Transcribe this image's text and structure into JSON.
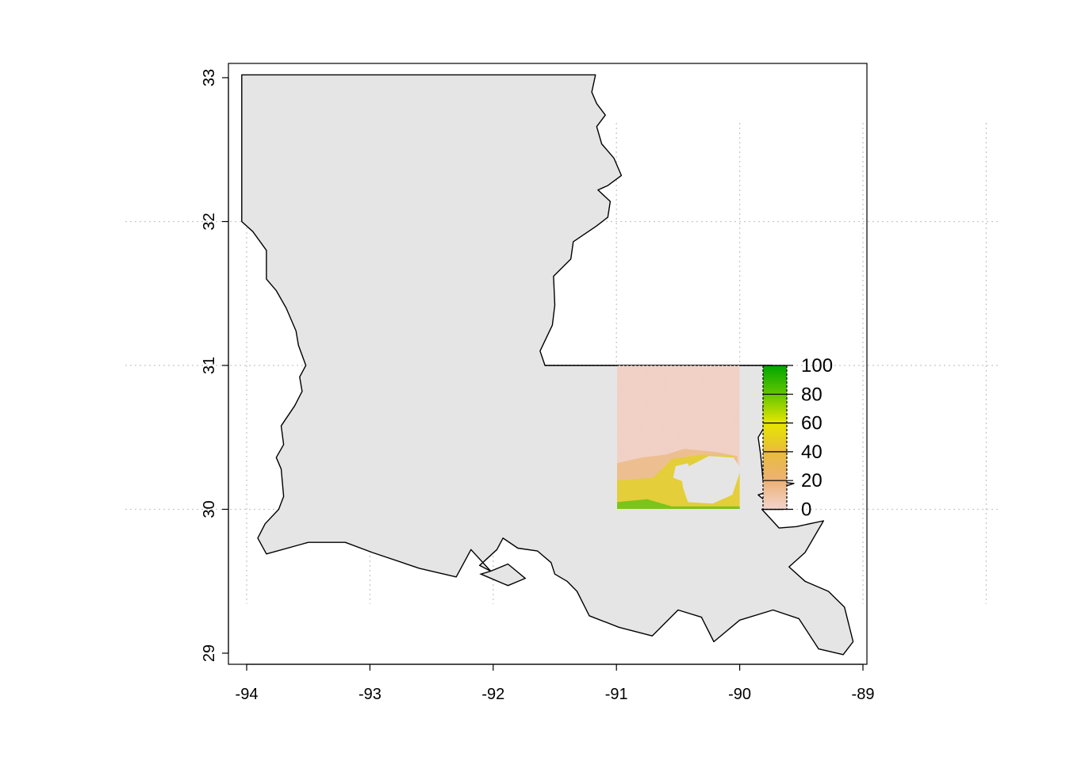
{
  "map": {
    "x_ticks": [
      {
        "value": -94,
        "label": "-94"
      },
      {
        "value": -93,
        "label": "-93"
      },
      {
        "value": -92,
        "label": "-92"
      },
      {
        "value": -91,
        "label": "-91"
      },
      {
        "value": -90,
        "label": "-90"
      },
      {
        "value": -89,
        "label": "-89"
      }
    ],
    "y_ticks": [
      {
        "value": 29,
        "label": "29"
      },
      {
        "value": 30,
        "label": "30"
      },
      {
        "value": 31,
        "label": "31"
      },
      {
        "value": 32,
        "label": "32"
      },
      {
        "value": 33,
        "label": "33"
      }
    ],
    "xlim": [
      -94.1,
      -89.05
    ],
    "ylim": [
      28.9,
      33.1
    ],
    "graticule_lon": [
      -94,
      -93,
      -92,
      -91,
      -90,
      -89,
      -88
    ],
    "graticule_lat": [
      30,
      31,
      32
    ],
    "graticule": true,
    "state_fill": "#e5e5e5",
    "state_outline_coords": [
      [
        -94.04,
        33.02
      ],
      [
        -92.0,
        33.02
      ],
      [
        -91.17,
        33.02
      ],
      [
        -91.2,
        32.9
      ],
      [
        -91.16,
        32.82
      ],
      [
        -91.09,
        32.74
      ],
      [
        -91.16,
        32.66
      ],
      [
        -91.12,
        32.54
      ],
      [
        -91.02,
        32.44
      ],
      [
        -90.96,
        32.32
      ],
      [
        -91.07,
        32.25
      ],
      [
        -91.15,
        32.22
      ],
      [
        -91.05,
        32.14
      ],
      [
        -91.07,
        32.03
      ],
      [
        -91.16,
        31.97
      ],
      [
        -91.35,
        31.86
      ],
      [
        -91.37,
        31.74
      ],
      [
        -91.51,
        31.62
      ],
      [
        -91.5,
        31.42
      ],
      [
        -91.52,
        31.28
      ],
      [
        -91.62,
        31.1
      ],
      [
        -91.58,
        31.0
      ],
      [
        -89.74,
        31.0
      ],
      [
        -89.8,
        30.8
      ],
      [
        -89.81,
        30.7
      ],
      [
        -89.78,
        30.6
      ],
      [
        -89.85,
        30.5
      ],
      [
        -89.83,
        30.38
      ],
      [
        -89.81,
        30.2
      ],
      [
        -89.56,
        30.18
      ],
      [
        -89.85,
        30.1
      ],
      [
        -89.78,
        30.05
      ],
      [
        -89.65,
        30.0
      ],
      [
        -89.82,
        30.0
      ],
      [
        -89.68,
        29.87
      ],
      [
        -89.54,
        29.88
      ],
      [
        -89.32,
        29.92
      ],
      [
        -89.47,
        29.7
      ],
      [
        -89.6,
        29.6
      ],
      [
        -89.47,
        29.5
      ],
      [
        -89.28,
        29.43
      ],
      [
        -89.15,
        29.32
      ],
      [
        -89.08,
        29.08
      ],
      [
        -89.16,
        28.99
      ],
      [
        -89.36,
        29.03
      ],
      [
        -89.52,
        29.24
      ],
      [
        -89.73,
        29.3
      ],
      [
        -90.0,
        29.23
      ],
      [
        -90.21,
        29.08
      ],
      [
        -90.31,
        29.25
      ],
      [
        -90.5,
        29.3
      ],
      [
        -90.71,
        29.12
      ],
      [
        -90.98,
        29.18
      ],
      [
        -91.22,
        29.26
      ],
      [
        -91.32,
        29.43
      ],
      [
        -91.4,
        29.5
      ],
      [
        -91.5,
        29.55
      ],
      [
        -91.53,
        29.63
      ],
      [
        -91.64,
        29.71
      ],
      [
        -91.8,
        29.73
      ],
      [
        -91.92,
        29.8
      ],
      [
        -91.97,
        29.72
      ],
      [
        -92.11,
        29.61
      ],
      [
        -92.02,
        29.57
      ],
      [
        -92.18,
        29.72
      ],
      [
        -92.3,
        29.53
      ],
      [
        -92.6,
        29.59
      ],
      [
        -92.98,
        29.7
      ],
      [
        -93.2,
        29.77
      ],
      [
        -93.5,
        29.77
      ],
      [
        -93.84,
        29.69
      ],
      [
        -93.91,
        29.8
      ],
      [
        -93.85,
        29.9
      ],
      [
        -93.74,
        30.0
      ],
      [
        -93.7,
        30.09
      ],
      [
        -93.72,
        30.28
      ],
      [
        -93.76,
        30.36
      ],
      [
        -93.7,
        30.45
      ],
      [
        -93.72,
        30.58
      ],
      [
        -93.61,
        30.72
      ],
      [
        -93.55,
        30.82
      ],
      [
        -93.57,
        30.92
      ],
      [
        -93.52,
        31.0
      ],
      [
        -93.58,
        31.14
      ],
      [
        -93.6,
        31.24
      ],
      [
        -93.68,
        31.4
      ],
      [
        -93.76,
        31.52
      ],
      [
        -93.84,
        31.6
      ],
      [
        -93.84,
        31.8
      ],
      [
        -93.95,
        31.93
      ],
      [
        -94.04,
        32.0
      ],
      [
        -94.04,
        33.02
      ]
    ],
    "state_outline_color": "#000000",
    "lake_pontchartrain_coords": [
      [
        -90.48,
        30.27
      ],
      [
        -90.25,
        30.37
      ],
      [
        -90.05,
        30.36
      ],
      [
        -89.99,
        30.28
      ],
      [
        -90.06,
        30.1
      ],
      [
        -90.22,
        30.04
      ],
      [
        -90.42,
        30.05
      ],
      [
        -90.46,
        30.15
      ]
    ],
    "lake_maurepas_coords": [
      [
        -90.52,
        30.3
      ],
      [
        -90.42,
        30.32
      ],
      [
        -90.39,
        30.24
      ],
      [
        -90.45,
        30.19
      ],
      [
        -90.54,
        30.22
      ]
    ],
    "raster": {
      "extent_lon": [
        -91.0,
        -90.0
      ],
      "extent_lat": [
        30.0,
        31.0
      ]
    },
    "legend": {
      "min": 0,
      "max": 100,
      "labels": [
        "100",
        "80",
        "60",
        "40",
        "20",
        "0"
      ],
      "colors": [
        "#00a600",
        "#63c600",
        "#e6e600",
        "#e9bd3a",
        "#ecb176",
        "#f2f2f2"
      ]
    }
  }
}
